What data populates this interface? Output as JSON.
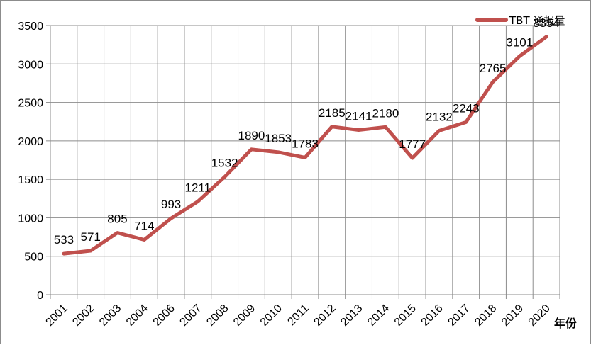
{
  "chart_data": {
    "type": "line",
    "title": "",
    "xlabel": "年份",
    "ylabel": "",
    "ylim": [
      0,
      3500
    ],
    "yticks": [
      0,
      500,
      1000,
      1500,
      2000,
      2500,
      3000,
      3500
    ],
    "grid": "on",
    "legend_position": "top-right",
    "categories": [
      "2001",
      "2002",
      "2003",
      "2004",
      "2006",
      "2007",
      "2008",
      "2009",
      "2010",
      "2011",
      "2012",
      "2013",
      "2014",
      "2015",
      "2016",
      "2017",
      "2018",
      "2019",
      "2020"
    ],
    "series": [
      {
        "name": "TBT 通报量",
        "color": "#c0504d",
        "values": [
          533,
          571,
          805,
          714,
          993,
          1211,
          1532,
          1890,
          1853,
          1783,
          2185,
          2141,
          2180,
          1777,
          2132,
          2243,
          2765,
          3101,
          3354
        ]
      }
    ]
  }
}
